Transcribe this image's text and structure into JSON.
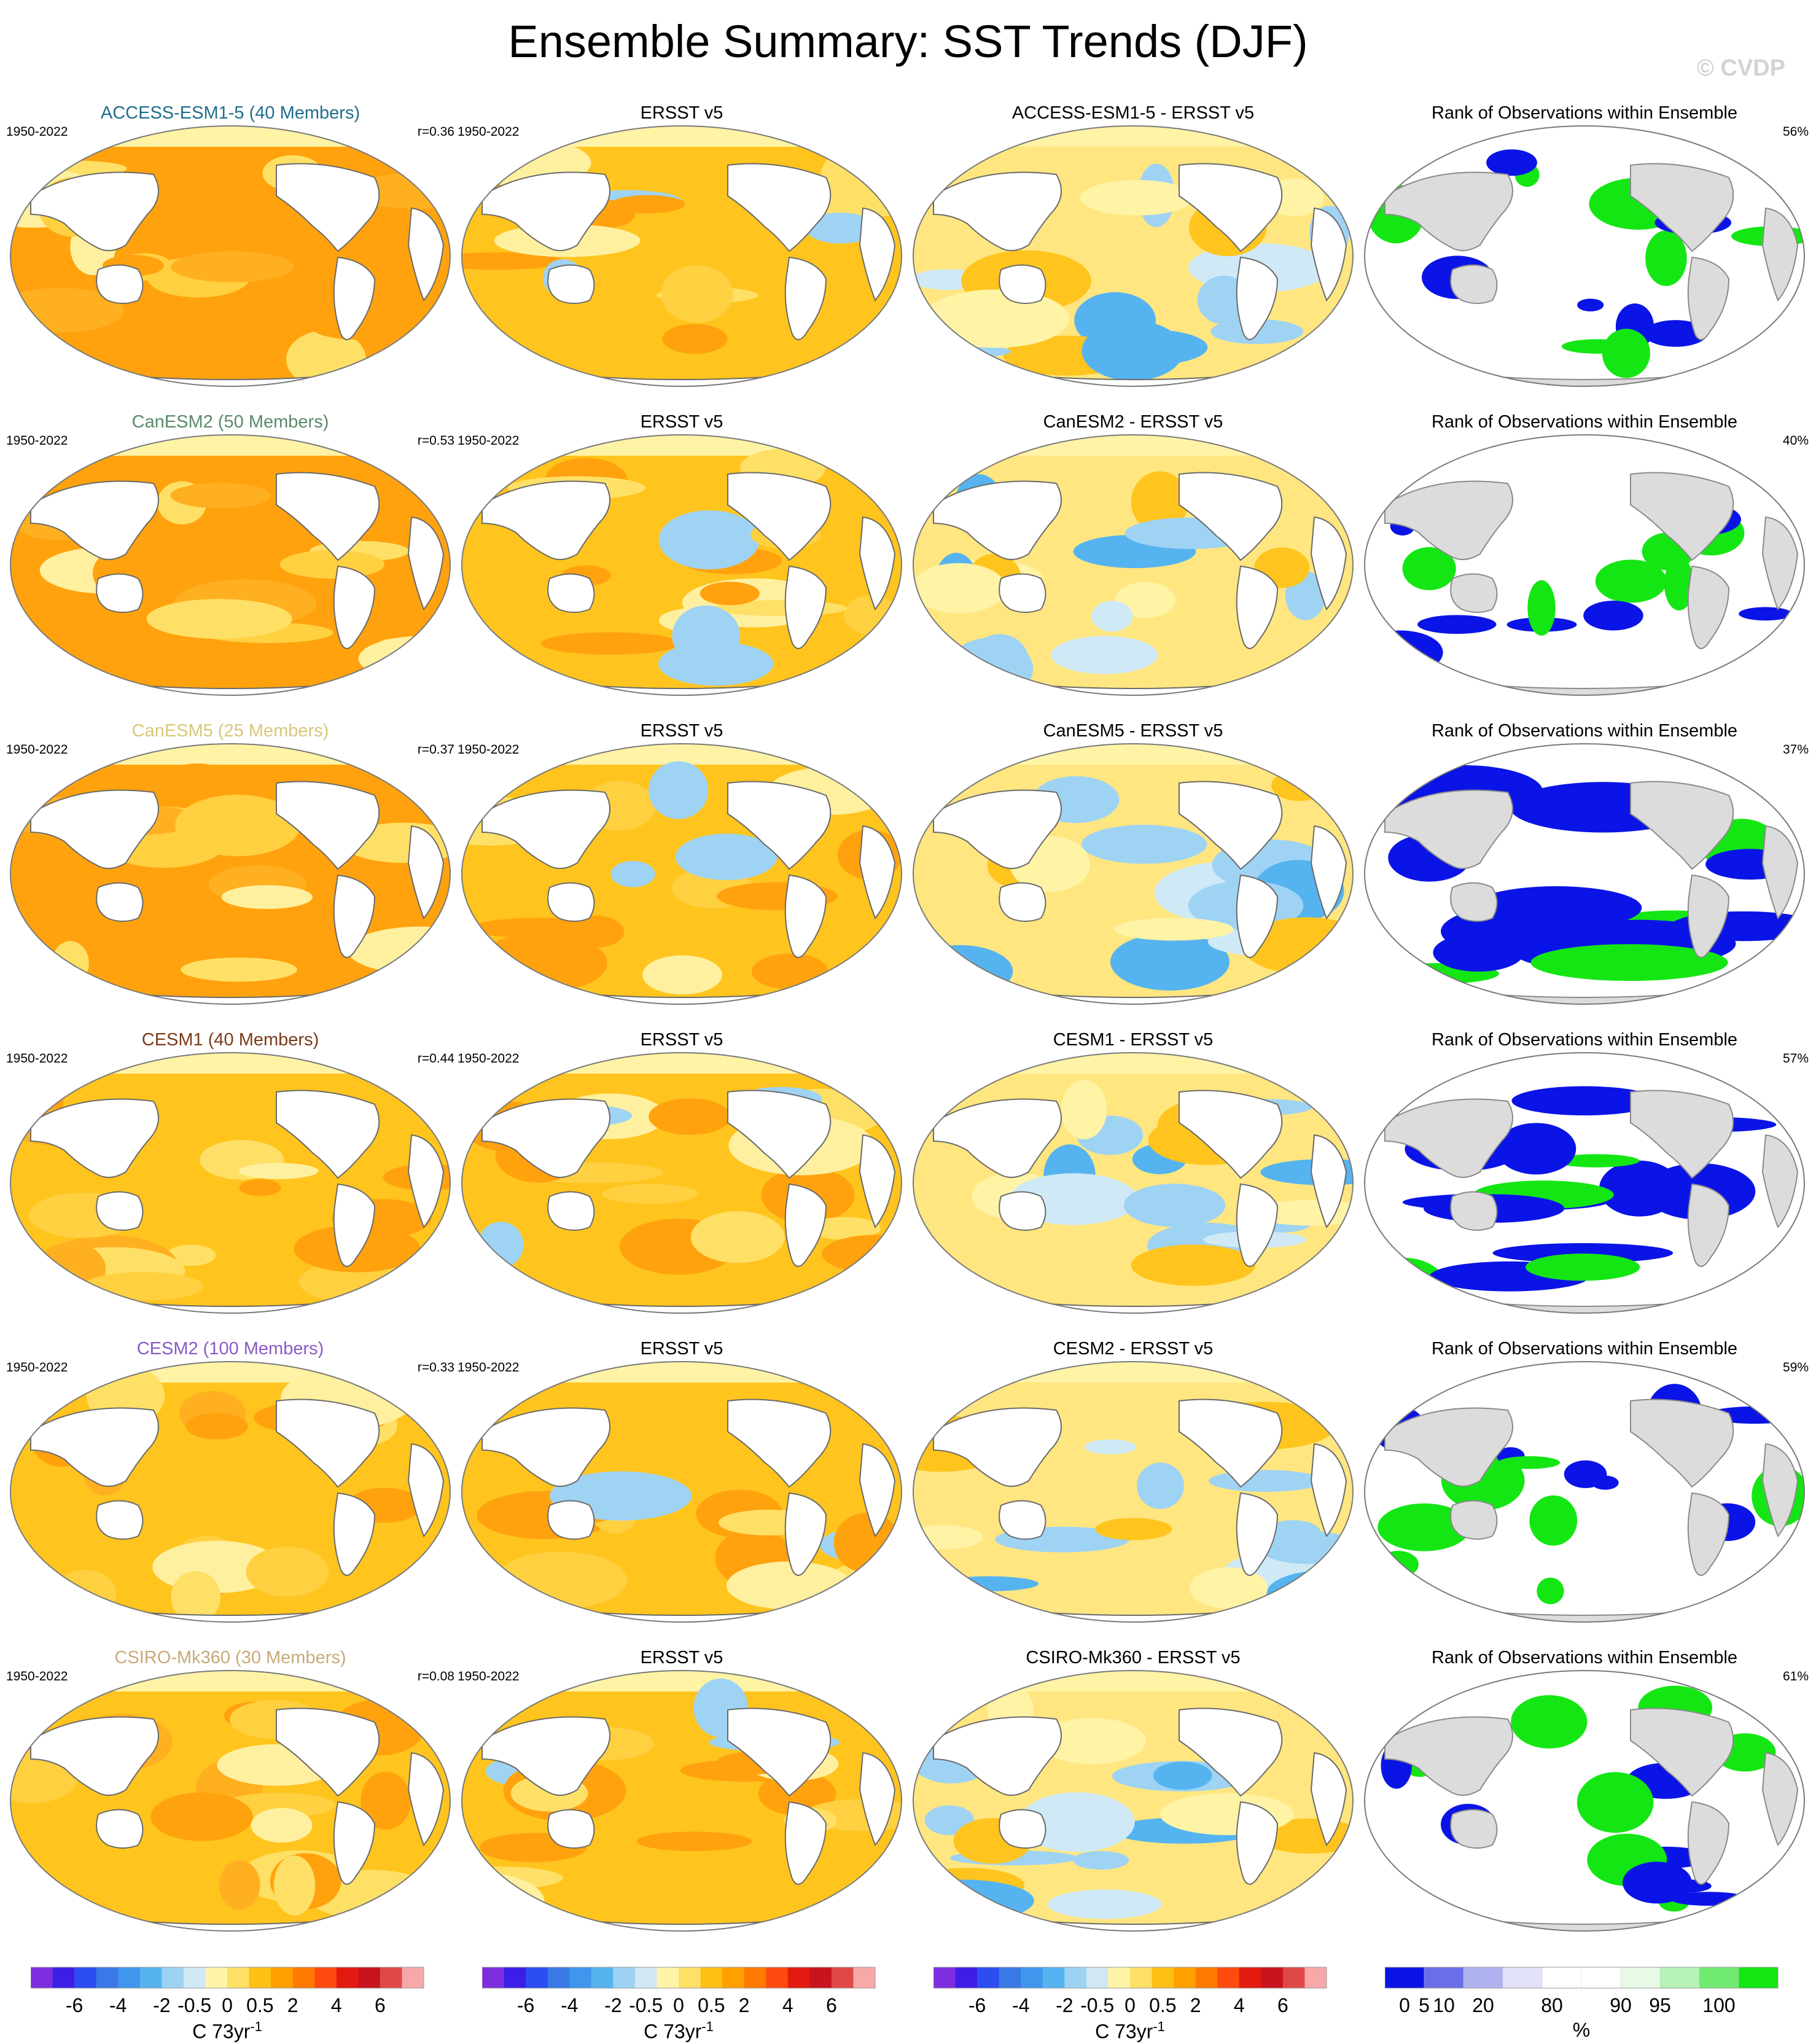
{
  "title": "Ensemble Summary: SST Trends (DJF)",
  "watermark": "© CVDP",
  "period": "1950-2022",
  "obs_title": "ERSST v5",
  "rank_title": "Rank of Observations within Ensemble",
  "rows": [
    {
      "model": "ACCESS-ESM1-5 (40 Members)",
      "model_color": "#1f6e8c",
      "r": "r=0.36",
      "diff": "ACCESS-ESM1-5 - ERSST v5",
      "rank_pct": "56%"
    },
    {
      "model": "CanESM2 (50 Members)",
      "model_color": "#5a8a6a",
      "r": "r=0.53",
      "diff": "CanESM2 - ERSST v5",
      "rank_pct": "40%"
    },
    {
      "model": "CanESM5 (25 Members)",
      "model_color": "#d9c77a",
      "r": "r=0.37",
      "diff": "CanESM5 - ERSST v5",
      "rank_pct": "37%"
    },
    {
      "model": "CESM1 (40 Members)",
      "model_color": "#7a3b1a",
      "r": "r=0.44",
      "diff": "CESM1 - ERSST v5",
      "rank_pct": "57%"
    },
    {
      "model": "CESM2 (100 Members)",
      "model_color": "#8a5ac8",
      "r": "r=0.33",
      "diff": "CESM2 - ERSST v5",
      "rank_pct": "59%"
    },
    {
      "model": "CSIRO-Mk360 (30 Members)",
      "model_color": "#c8aa7a",
      "r": "r=0.08",
      "diff": "CSIRO-Mk360 - ERSST v5",
      "rank_pct": "61%"
    }
  ],
  "trend_colorbar": {
    "colors": [
      "#7d2fe0",
      "#3c1ee6",
      "#2c4ef0",
      "#3a78e6",
      "#3f96ec",
      "#55b4f0",
      "#9dd2f2",
      "#d0e8f4",
      "#fff5a8",
      "#ffe066",
      "#ffc014",
      "#ffa000",
      "#ff7a00",
      "#ff4a10",
      "#e21a10",
      "#c8141e",
      "#e04848",
      "#f7a8a8"
    ],
    "ticks": [
      "-6",
      "-4",
      "-2",
      "-0.5",
      "0",
      "0.5",
      "2",
      "4",
      "6"
    ],
    "units": "C 73yr",
    "units_sup": "-1"
  },
  "rank_colorbar": {
    "colors": [
      "#0a14e6",
      "#6a6ee8",
      "#b0b2f0",
      "#e2e2f8",
      "#ffffff",
      "#ffffff",
      "#e6fae6",
      "#b6f2b6",
      "#70ea70",
      "#14e614"
    ],
    "ticks": [
      "0",
      "5",
      "10",
      "20",
      "80",
      "90",
      "95",
      "100"
    ],
    "units": "%"
  }
}
